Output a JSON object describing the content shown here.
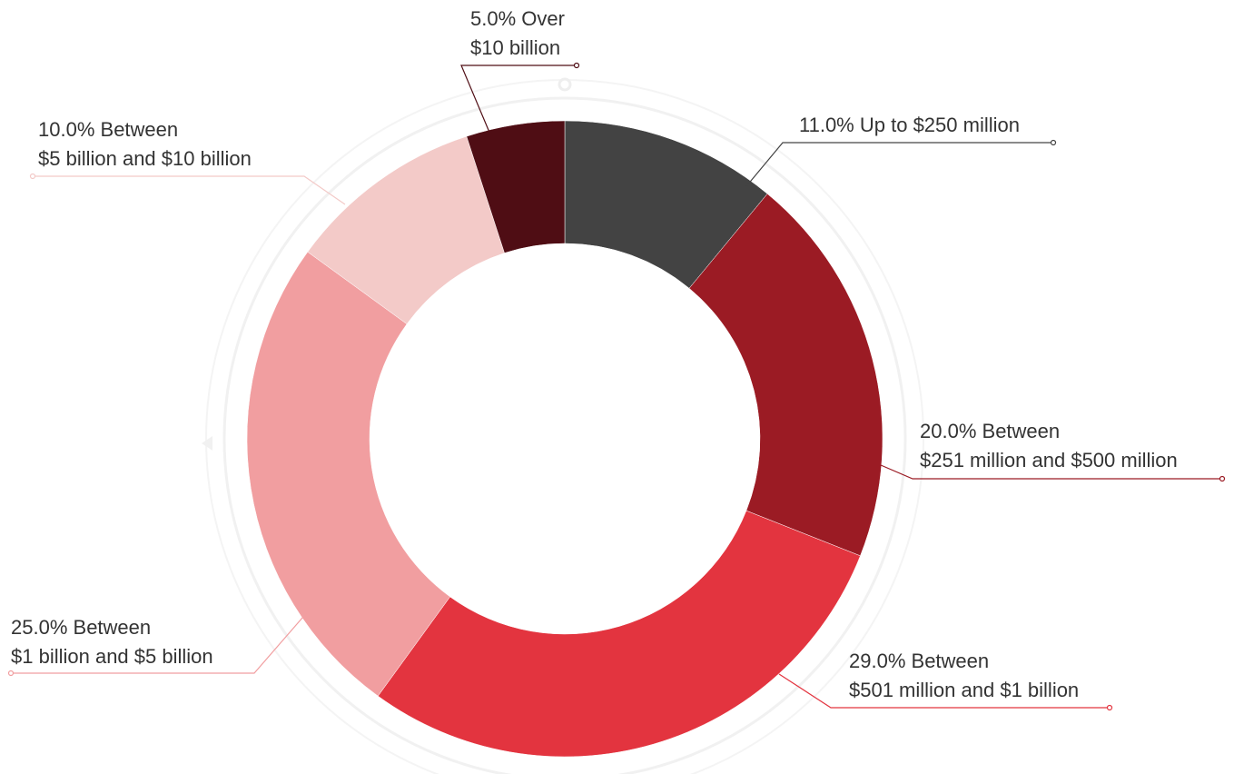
{
  "chart_data": {
    "type": "donut",
    "categories": [
      "Up to $250 million",
      "Between $251 million and $500 million",
      "Between $501 million and $1 billion",
      "Between $1 billion and $5 billion",
      "Between $5 billion and $10 billion",
      "Over $10 billion"
    ],
    "values": [
      11,
      20,
      29,
      25,
      10,
      5
    ],
    "value_labels": [
      "11.0%",
      "20.0%",
      "29.0%",
      "25.0%",
      "10.0%",
      "5.0%"
    ],
    "colors": [
      "#434343",
      "#9b1b24",
      "#e3343f",
      "#f19ea0",
      "#f3cac8",
      "#4f0d14"
    ]
  }
}
